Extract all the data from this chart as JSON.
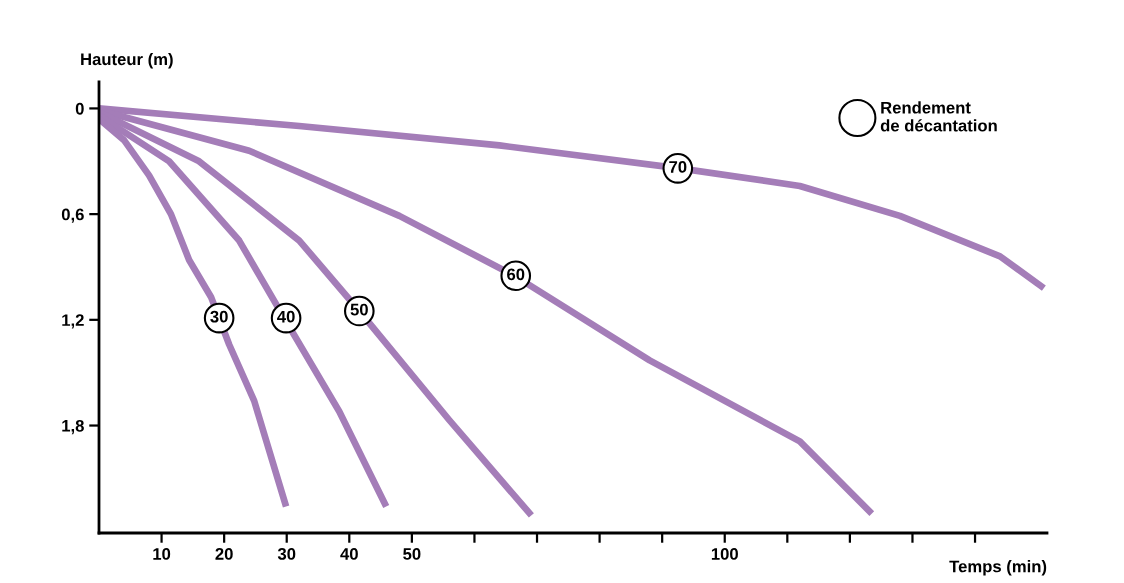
{
  "chart_data": {
    "type": "line",
    "xlabel": "Temps (min)",
    "ylabel": "Hauteur (m)",
    "xlim": [
      0,
      151.5
    ],
    "ylim": [
      2.41,
      -0.15
    ],
    "xticks": [
      10,
      20,
      30,
      40,
      50,
      {
        "value": 60,
        "label": null
      },
      {
        "value": 70,
        "label": null
      },
      {
        "value": 80,
        "label": null
      },
      {
        "value": 90,
        "label": null
      },
      100,
      {
        "value": 110,
        "label": null
      },
      {
        "value": 120,
        "label": null
      },
      {
        "value": 130,
        "label": null
      },
      {
        "value": 140,
        "label": null
      }
    ],
    "yticks": [
      0,
      {
        "value": 0.6,
        "label": "0,6"
      },
      {
        "value": 1.2,
        "label": "1,2"
      },
      {
        "value": 1.8,
        "label": "1,8"
      }
    ],
    "grid": false,
    "legend": false,
    "marker": "none",
    "line_style": "solid",
    "series": [
      {
        "color": "#a47db8",
        "x": [
          0,
          32,
          64,
          92.8,
          112,
          128,
          144,
          151
        ],
        "values": [
          0,
          0.1,
          0.21,
          0.34,
          0.44,
          0.61,
          0.84,
          1.02
        ]
      },
      {
        "color": "#a47db8",
        "x": [
          0,
          24,
          48,
          66.4,
          88,
          112,
          123.5
        ],
        "values": [
          0.01,
          0.24,
          0.61,
          0.95,
          1.43,
          1.89,
          2.3
        ]
      },
      {
        "color": "#a47db8",
        "x": [
          0,
          16,
          32,
          41.6,
          56,
          69.1
        ],
        "values": [
          0.02,
          0.3,
          0.75,
          1.15,
          1.77,
          2.31
        ]
      },
      {
        "color": "#a47db8",
        "x": [
          0,
          11.2,
          22.4,
          29.6,
          38.4,
          45.9
        ],
        "values": [
          0.04,
          0.3,
          0.75,
          1.19,
          1.72,
          2.26
        ]
      },
      {
        "color": "#a47db8",
        "x": [
          0,
          4,
          8,
          11.5,
          14.4,
          17.9,
          20.8,
          24.8,
          29.9
        ],
        "values": [
          0.06,
          0.18,
          0.38,
          0.6,
          0.86,
          1.07,
          1.34,
          1.66,
          2.26
        ]
      }
    ],
    "annotations": [
      {
        "text": "70",
        "x": 92.5,
        "y": 0.34
      },
      {
        "text": "60",
        "x": 66.6,
        "y": 0.95
      },
      {
        "text": "50",
        "x": 41.6,
        "y": 1.15
      },
      {
        "text": "40",
        "x": 29.9,
        "y": 1.19
      },
      {
        "text": "30",
        "x": 19.2,
        "y": 1.19
      },
      "Rendement\nde décantation"
    ]
  }
}
